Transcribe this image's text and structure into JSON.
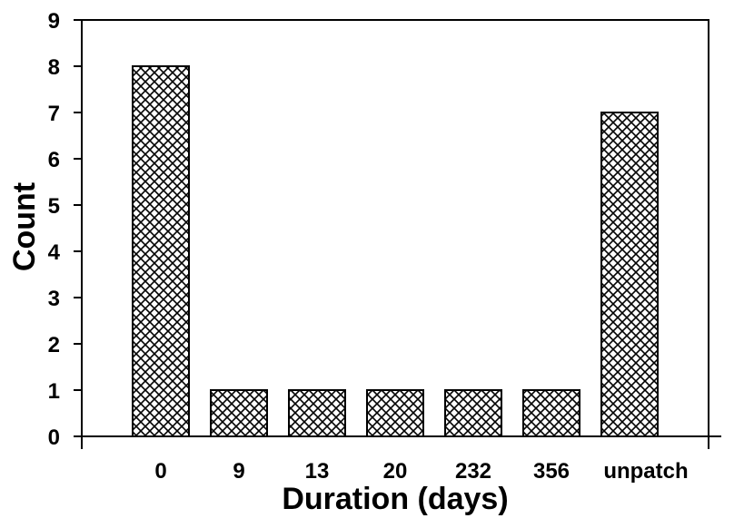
{
  "chart_data": {
    "type": "bar",
    "categories": [
      "0",
      "9",
      "13",
      "20",
      "232",
      "356",
      "unpatch"
    ],
    "values": [
      8,
      1,
      1,
      1,
      1,
      1,
      7
    ],
    "title": "",
    "xlabel": "Duration (days)",
    "ylabel": "Count",
    "ylim": [
      0,
      9
    ],
    "yticks": [
      0,
      1,
      2,
      3,
      4,
      5,
      6,
      7,
      8,
      9
    ],
    "grid": false,
    "bar_fill": "crosshatch",
    "colors": {
      "bar_stroke": "#000000",
      "hatch": "#000000",
      "background": "#ffffff"
    }
  }
}
